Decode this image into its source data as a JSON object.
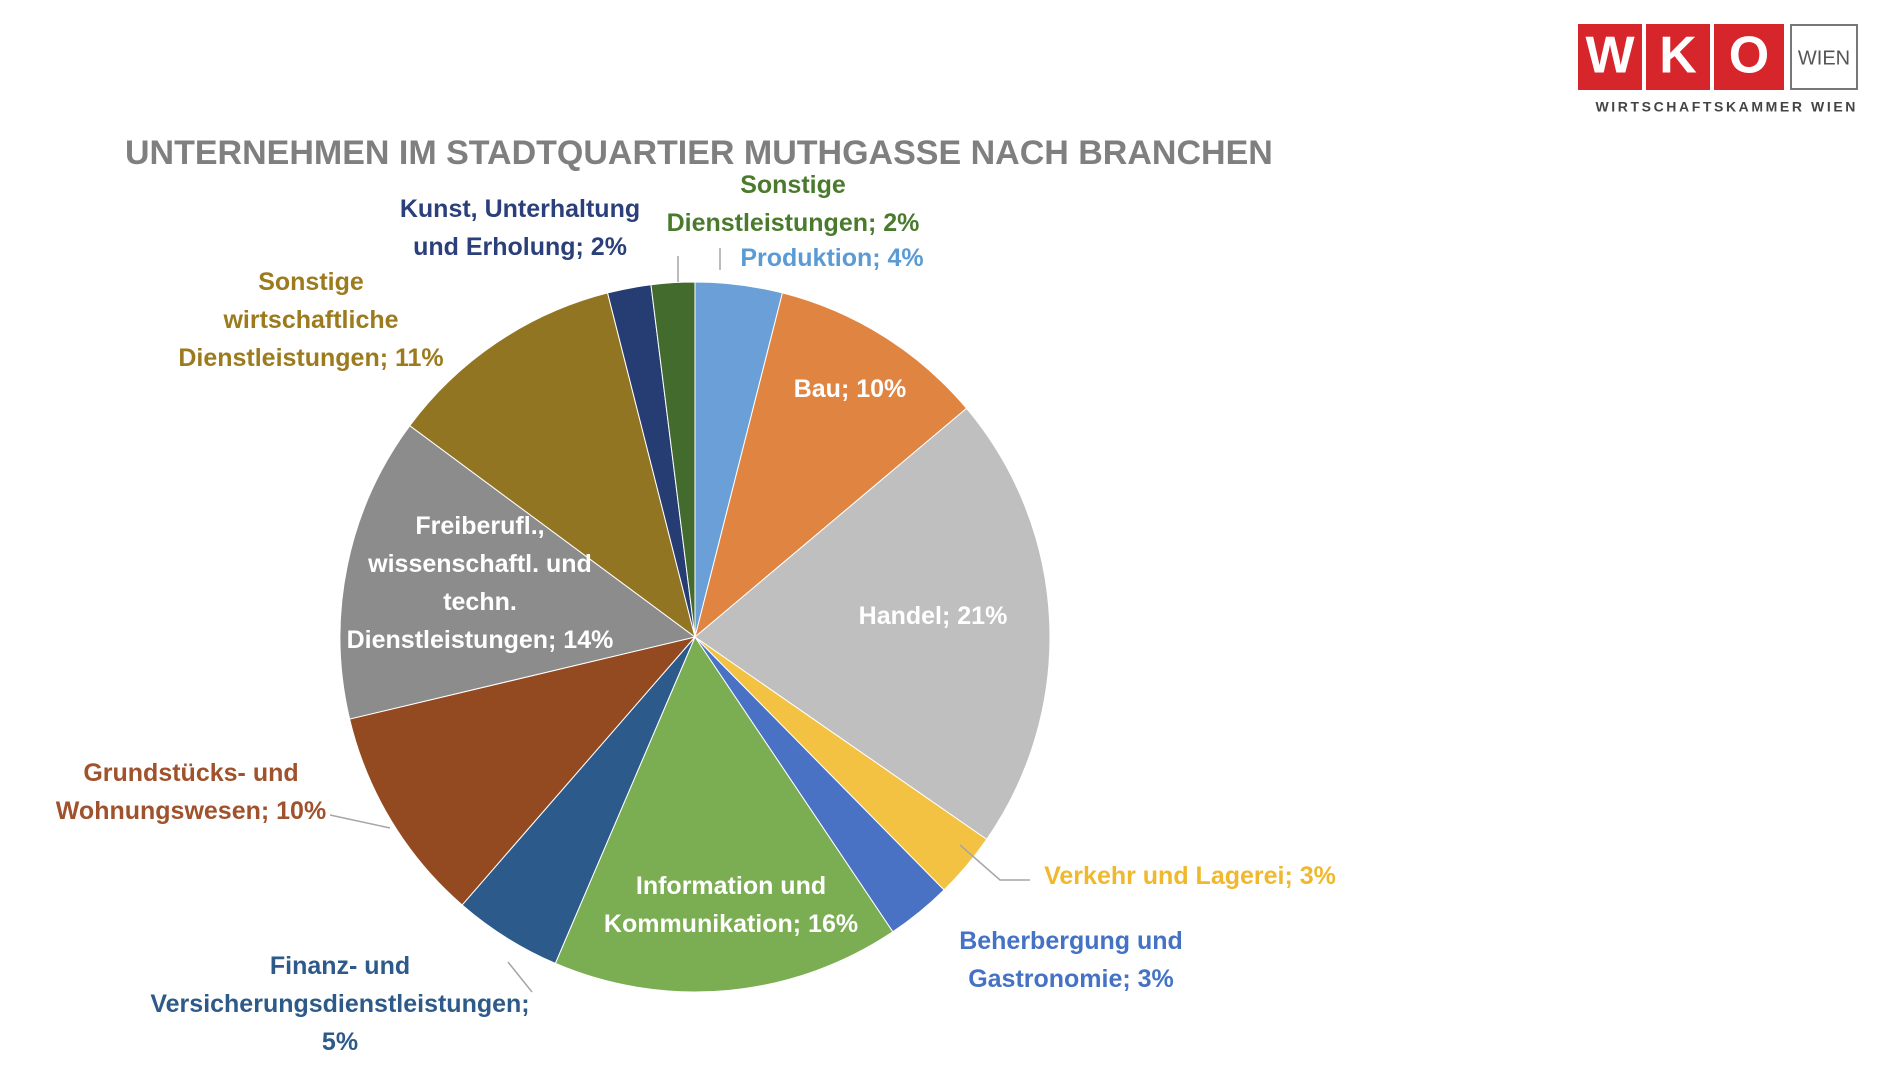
{
  "logo": {
    "letters": [
      "W",
      "K",
      "O"
    ],
    "region": "WIEN",
    "tagline": "WIRTSCHAFTSKAMMER WIEN"
  },
  "chart_data": {
    "type": "pie",
    "title": "UNTERNEHMEN IM STADTQUARTIER MUTHGASSE NACH BRANCHEN",
    "values": [
      4,
      10,
      21,
      3,
      3,
      16,
      5,
      10,
      14,
      11,
      2,
      2
    ],
    "value_labels": [
      "Produktion; 4%",
      "Bau; 10%",
      "Handel; 21%",
      "Verkehr und Lagerei; 3%",
      "Beherbergung und Gastronomie; 3%",
      "Information und Kommunikation; 16%",
      "Finanz- und Versicherungsdienstleistungen; 5%",
      "Grundstücks- und Wohnungswesen; 10%",
      "Freiberufl., wissenschaftl. und techn. Dienstleistungen; 14%",
      "Sonstige wirtschaftliche Dienstleistungen; 11%",
      "Kunst, Unterhaltung und Erholung; 2%",
      "Sonstige Dienstleistungen; 2%"
    ],
    "colors": [
      "#6a9fd8",
      "#e08442",
      "#bfbfbf",
      "#f4c242",
      "#4a72c4",
      "#7bad52",
      "#2c5a8a",
      "#934a20",
      "#8c8c8c",
      "#927522",
      "#263d73",
      "#446b2e"
    ]
  }
}
